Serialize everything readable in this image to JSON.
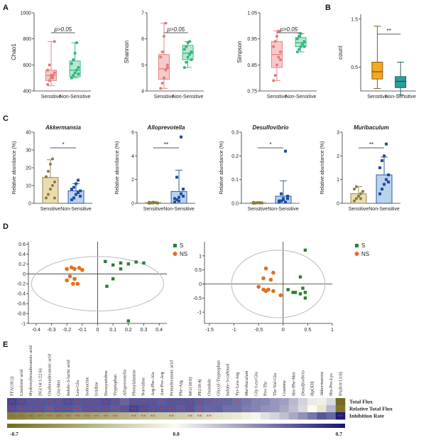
{
  "panels": {
    "A": "A",
    "B": "B",
    "C": "C",
    "D": "D",
    "E": "E"
  },
  "chart_data": [
    {
      "type": "box",
      "id": "chao1",
      "ylabel": "Chao1",
      "ylim": [
        400,
        1000
      ],
      "yticks": [
        "400",
        "600",
        "800",
        "1000"
      ],
      "categories": [
        "Sensitive",
        "Non-Sensitive"
      ],
      "significance": "p>0.05",
      "groups": [
        {
          "name": "Sensitive",
          "q1": 480,
          "median": 520,
          "q3": 560,
          "min": 440,
          "max": 780,
          "points": [
            450,
            480,
            500,
            520,
            540,
            560,
            600,
            520,
            500,
            780
          ]
        },
        {
          "name": "Non-Sensitive",
          "q1": 510,
          "median": 560,
          "q3": 630,
          "min": 500,
          "max": 770,
          "points": [
            500,
            520,
            540,
            560,
            580,
            610,
            640,
            690,
            770,
            530
          ]
        }
      ]
    },
    {
      "type": "box",
      "id": "shannon",
      "ylabel": "Shannon",
      "ylim": [
        4,
        7
      ],
      "yticks": [
        "4",
        "5",
        "6",
        "7"
      ],
      "categories": [
        "Sensitive",
        "Non-Sensitive"
      ],
      "significance": "p>0.05",
      "groups": [
        {
          "name": "Sensitive",
          "q1": 4.45,
          "median": 4.85,
          "q3": 5.4,
          "min": 4.1,
          "max": 6.6,
          "points": [
            4.1,
            4.3,
            4.5,
            4.8,
            5.0,
            5.3,
            5.5,
            6.1,
            6.6,
            4.9
          ]
        },
        {
          "name": "Non-Sensitive",
          "q1": 5.2,
          "median": 5.45,
          "q3": 5.75,
          "min": 4.9,
          "max": 5.9,
          "points": [
            4.9,
            5.1,
            5.3,
            5.4,
            5.5,
            5.6,
            5.7,
            5.85,
            5.9,
            5.2
          ]
        }
      ]
    },
    {
      "type": "box",
      "id": "simpson",
      "ylabel": "Simpson",
      "ylim": [
        0.75,
        1.05
      ],
      "yticks": [
        "0.75",
        "0.85",
        "0.95",
        "1.05"
      ],
      "categories": [
        "Sensitive",
        "Non-Sensitive"
      ],
      "significance": "p>0.05",
      "groups": [
        {
          "name": "Sensitive",
          "q1": 0.84,
          "median": 0.89,
          "q3": 0.94,
          "min": 0.79,
          "max": 0.98,
          "points": [
            0.79,
            0.81,
            0.85,
            0.88,
            0.9,
            0.92,
            0.94,
            0.96,
            0.98,
            0.87
          ]
        },
        {
          "name": "Non-Sensitive",
          "q1": 0.92,
          "median": 0.935,
          "q3": 0.955,
          "min": 0.9,
          "max": 0.97,
          "points": [
            0.9,
            0.91,
            0.92,
            0.93,
            0.94,
            0.95,
            0.96,
            0.97,
            0.93,
            0.92
          ]
        }
      ]
    },
    {
      "type": "box",
      "id": "count",
      "ylabel": "count",
      "ylim": [
        0,
        1.6
      ],
      "yticks": [
        "0.5",
        "1.5"
      ],
      "categories": [
        "Sensitive",
        "Non-Sensitive"
      ],
      "significance": "**",
      "groups": [
        {
          "name": "Sensitive",
          "q1": 0.25,
          "median": 0.4,
          "q3": 0.6,
          "min": 0.05,
          "max": 1.35,
          "points": []
        },
        {
          "name": "Non-Sensitive",
          "q1": 0.07,
          "median": 0.2,
          "q3": 0.3,
          "min": -0.08,
          "max": 0.6,
          "points": []
        }
      ]
    },
    {
      "type": "bar",
      "id": "akkermansia",
      "title": "Akkermansia",
      "ylabel": "Relative abundance (%)",
      "ylim": [
        0,
        40
      ],
      "yticks": [
        "0",
        "10",
        "20",
        "30",
        "40"
      ],
      "categories": [
        "Sensitive",
        "Non-Sensitive"
      ],
      "significance": "*",
      "values": [
        14.5,
        7
      ],
      "errors": [
        10,
        4
      ],
      "points": [
        [
          3,
          5,
          8,
          10,
          12,
          15,
          18,
          22,
          25,
          3
        ],
        [
          2,
          3,
          5,
          6,
          7,
          8,
          9,
          11,
          13,
          4
        ]
      ]
    },
    {
      "type": "bar",
      "id": "alloprevotella",
      "title": "Alloprevotella",
      "ylabel": "Relative abundance (%)",
      "ylim": [
        0,
        6
      ],
      "yticks": [
        "0",
        "2",
        "4",
        "6"
      ],
      "categories": [
        "Sensitive",
        "Non-Sensitive"
      ],
      "significance": "**",
      "values": [
        0.05,
        1.0
      ],
      "errors": [
        0.05,
        1.8
      ],
      "points": [
        [
          0,
          0.05,
          0.1,
          0.05,
          0,
          0.08,
          0.03,
          0.02,
          0.06,
          0.04
        ],
        [
          0.1,
          0.3,
          0.5,
          0.8,
          1.2,
          0.4,
          2.2,
          0.2,
          5.6,
          0.6
        ]
      ]
    },
    {
      "type": "bar",
      "id": "desulfovibrio",
      "title": "Desulfovibrio",
      "ylabel": "Relative abundance (%)",
      "ylim": [
        0,
        0.3
      ],
      "yticks": [
        "0.0",
        "0.1",
        "0.2",
        "0.3"
      ],
      "categories": [
        "Sensitive",
        "Non-Sensitive"
      ],
      "significance": "*",
      "values": [
        0.002,
        0.03
      ],
      "errors": [
        0.002,
        0.065
      ],
      "points": [
        [
          0,
          0.002,
          0.003,
          0.001,
          0.002,
          0.004,
          0.001,
          0.002,
          0.003,
          0.001
        ],
        [
          0.005,
          0.01,
          0.02,
          0.005,
          0.03,
          0.01,
          0.04,
          0.015,
          0.22,
          0.02
        ]
      ]
    },
    {
      "type": "bar",
      "id": "muribaculum",
      "title": "Muribaculum",
      "ylabel": "Relative abundance (%)",
      "ylim": [
        0,
        3
      ],
      "yticks": [
        "0",
        "1",
        "2",
        "3"
      ],
      "categories": [
        "Sensitive",
        "Non-Sensitive"
      ],
      "significance": "**",
      "values": [
        0.4,
        1.2
      ],
      "errors": [
        0.3,
        0.75
      ],
      "points": [
        [
          0.1,
          0.2,
          0.3,
          0.4,
          0.5,
          0.6,
          0.7,
          0.3,
          0.2,
          0.5
        ],
        [
          0.4,
          0.6,
          0.8,
          1.0,
          1.2,
          1.5,
          1.8,
          2.0,
          2.5,
          0.9
        ]
      ]
    },
    {
      "type": "scatter",
      "id": "pca1",
      "xlim": [
        -0.45,
        0.45
      ],
      "ylim": [
        -1.0,
        0.65
      ],
      "xticks": [
        "-0.4",
        "-0.3",
        "-0.2",
        "-0.1",
        "0",
        "0.1",
        "0.2",
        "0.3",
        "0.4"
      ],
      "yticks": [
        "0.6",
        "0.4",
        "0.2",
        "0",
        "-0.2",
        "-0.4",
        "-0.6",
        "-0.8",
        "-1"
      ],
      "legend": [
        "S",
        "NS"
      ],
      "series": [
        {
          "name": "S",
          "color": "#2e7d32",
          "points": [
            [
              0.05,
              0.25
            ],
            [
              0.1,
              0.18
            ],
            [
              0.15,
              0.22
            ],
            [
              0.2,
              0.2
            ],
            [
              0.25,
              0.24
            ],
            [
              0.3,
              0.22
            ],
            [
              0.1,
              -0.1
            ],
            [
              0.06,
              -0.25
            ],
            [
              0.2,
              -0.95
            ],
            [
              0.15,
              0.1
            ]
          ]
        },
        {
          "name": "NS",
          "color": "#e07020",
          "points": [
            [
              -0.2,
              0.1
            ],
            [
              -0.17,
              0.13
            ],
            [
              -0.15,
              0.1
            ],
            [
              -0.12,
              0.12
            ],
            [
              -0.1,
              0.08
            ],
            [
              -0.18,
              -0.05
            ],
            [
              -0.15,
              -0.1
            ],
            [
              -0.2,
              -0.13
            ],
            [
              -0.13,
              -0.2
            ],
            [
              -0.16,
              -0.2
            ]
          ]
        }
      ]
    },
    {
      "type": "scatter",
      "id": "pca2",
      "xlim": [
        -1.6,
        1.0
      ],
      "ylim": [
        -1.4,
        1.5
      ],
      "xticks": [
        "-1.5",
        "-1",
        "-0.5",
        "0",
        "0.5",
        "1"
      ],
      "yticks": [
        "1",
        "0.5",
        "0",
        "-0.5",
        "-1"
      ],
      "legend": [
        "S",
        "NS"
      ],
      "series": [
        {
          "name": "S",
          "color": "#2e7d32",
          "points": [
            [
              0.45,
              1.2
            ],
            [
              0.35,
              0.25
            ],
            [
              0.1,
              -0.2
            ],
            [
              0.2,
              -0.3
            ],
            [
              0.35,
              -0.35
            ],
            [
              0.45,
              -0.3
            ],
            [
              0.4,
              -0.15
            ],
            [
              0.45,
              -0.5
            ],
            [
              0.25,
              -0.3
            ]
          ]
        },
        {
          "name": "NS",
          "color": "#e07020",
          "points": [
            [
              -0.35,
              0.55
            ],
            [
              -0.2,
              0.4
            ],
            [
              -0.4,
              0.2
            ],
            [
              -0.25,
              0.15
            ],
            [
              -0.5,
              -0.1
            ],
            [
              -0.4,
              -0.2
            ],
            [
              -0.3,
              -0.2
            ],
            [
              -0.2,
              -0.25
            ],
            [
              -0.35,
              -0.25
            ],
            [
              -0.05,
              -0.4
            ]
          ]
        }
      ]
    }
  ],
  "heatmap": {
    "columns": [
      "FFA(18:2)",
      "Linolenic acid",
      "Hydroxyhexadecanoic acid",
      "DG(14:1/22:6)",
      "Oxohexadecanoic acid",
      "Glu-Met",
      "Indole-3-lactic acid",
      "Leu-Glu",
      "Isoleucine",
      "Uridine",
      "Deoxyuridine",
      "Tryptophan",
      "Alloprevotella",
      "Phenylalanine",
      "Norvaline",
      "Arg-Phe-Ala",
      "Asn-Pro-Arg",
      "Pentadecanoic acid",
      "Phe-Arg",
      "MG(18:0)",
      "PE(18:4)",
      "Oxindole",
      "Glycyl-Tryptophan",
      "Indole-3-carbinol",
      "Tyr-Leu-Arg",
      "Muribaculum",
      "Gly-Leu-Glu",
      "Pro-Thr",
      "Thr-Val-Glu",
      "Guanine",
      "His-Phe-Met",
      "Desulfovibrio",
      "HpODE",
      "Akkermansia",
      "His-Pro-Lys",
      "PA(8:0/13:0)"
    ],
    "rows": [
      "Total Flux",
      "Relative Total Flux",
      "Inhibition Rate"
    ],
    "values": [
      [
        0.55,
        0.52,
        0.5,
        0.5,
        0.5,
        0.5,
        0.52,
        0.5,
        0.5,
        0.5,
        0.52,
        0.5,
        0.45,
        0.5,
        0.5,
        0.5,
        0.48,
        0.5,
        0.5,
        0.5,
        0.48,
        0.46,
        0.45,
        0.45,
        0.42,
        0.4,
        0.36,
        0.35,
        0.3,
        0.28,
        0.2,
        0.12,
        0.05,
        -0.05,
        0.1,
        -0.7
      ],
      [
        0.52,
        0.5,
        0.5,
        0.5,
        0.48,
        0.5,
        0.5,
        0.48,
        0.5,
        0.5,
        0.5,
        0.48,
        0.5,
        0.55,
        0.52,
        0.5,
        0.5,
        0.5,
        0.48,
        0.5,
        0.46,
        0.45,
        0.46,
        0.42,
        0.42,
        0.38,
        0.36,
        0.32,
        0.3,
        0.25,
        0.18,
        0.1,
        0.0,
        -0.1,
        0.2,
        -0.65
      ],
      [
        -0.6,
        -0.58,
        -0.55,
        -0.52,
        -0.5,
        -0.5,
        -0.48,
        -0.45,
        -0.45,
        -0.42,
        -0.4,
        -0.38,
        -0.35,
        -0.33,
        -0.3,
        -0.28,
        -0.26,
        -0.25,
        -0.22,
        -0.2,
        -0.18,
        -0.15,
        -0.12,
        -0.1,
        -0.08,
        -0.05,
        0.02,
        0.08,
        0.12,
        0.18,
        0.25,
        0.32,
        0.4,
        0.5,
        0.45,
        0.68
      ]
    ],
    "stars": [
      [
        1,
        1,
        1,
        1,
        1,
        1,
        1,
        1,
        1,
        1,
        1,
        1,
        1,
        1,
        1,
        1,
        1,
        1,
        1,
        1,
        1,
        1,
        1,
        0,
        1,
        0,
        0,
        0,
        0,
        0,
        0,
        0,
        0,
        0,
        0,
        1
      ],
      [
        1,
        1,
        1,
        1,
        1,
        1,
        1,
        1,
        1,
        1,
        1,
        1,
        1,
        1,
        1,
        1,
        1,
        1,
        1,
        1,
        1,
        0,
        0,
        0,
        0,
        0,
        0,
        0,
        0,
        0,
        0,
        0,
        0,
        0,
        0,
        1
      ],
      [
        1,
        1,
        1,
        1,
        1,
        1,
        1,
        1,
        1,
        1,
        1,
        1,
        0,
        1,
        1,
        1,
        0,
        1,
        0,
        1,
        1,
        1,
        0,
        0,
        0,
        0,
        0,
        0,
        0,
        0,
        0,
        0,
        0,
        0,
        0,
        1
      ]
    ],
    "scale": [
      "-0.7",
      "0.0",
      "0.7"
    ]
  }
}
